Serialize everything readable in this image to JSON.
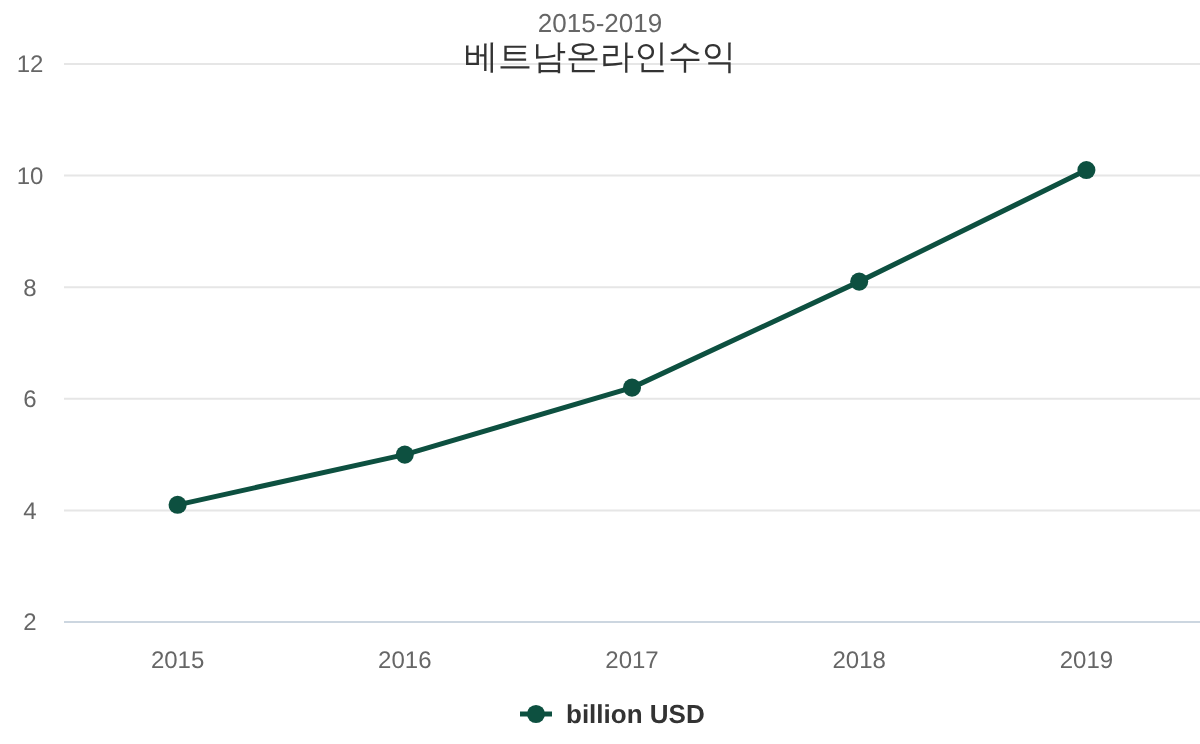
{
  "chart_data": {
    "type": "line",
    "title": "베트남온라인수익",
    "subtitle": "2015-2019",
    "categories": [
      "2015",
      "2016",
      "2017",
      "2018",
      "2019"
    ],
    "series": [
      {
        "name": "billion USD",
        "color": "#0d5040",
        "values": [
          4.1,
          5.0,
          6.2,
          8.1,
          10.1
        ]
      }
    ],
    "ylim": [
      2,
      12
    ],
    "yticks": [
      2,
      4,
      6,
      8,
      10,
      12
    ],
    "grid": "y",
    "legend": "bottom",
    "marker": "circle",
    "line_style": "solid"
  }
}
